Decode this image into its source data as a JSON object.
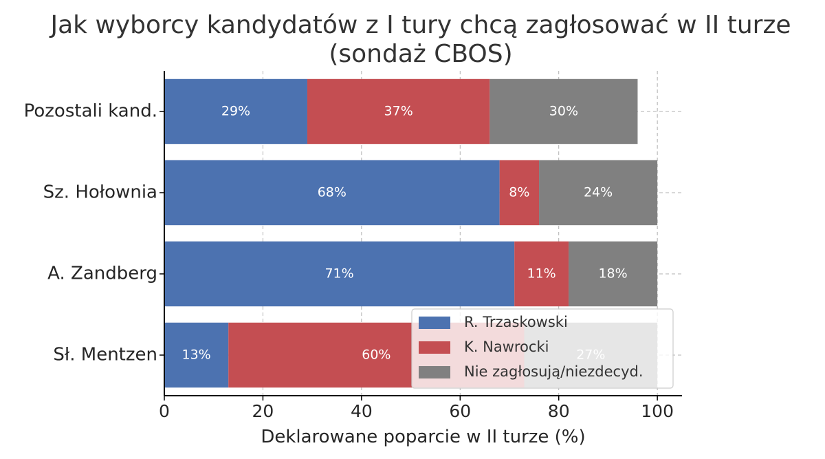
{
  "chart_data": {
    "type": "bar",
    "orientation": "horizontal",
    "stacked": true,
    "title": "Jak wyborcy kandydatów z I tury chcą zagłosować w II turze (sondaż CBOS)",
    "title_lines": [
      "Jak wyborcy kandydatów z I tury chcą zagłosować w II turze",
      "(sondaż CBOS)"
    ],
    "xlabel": "Deklarowane poparcie w II turze (%)",
    "ylabel": "",
    "xlim": [
      0,
      105
    ],
    "xticks": [
      0,
      20,
      40,
      60,
      80,
      100
    ],
    "grid": true,
    "legend_position": "lower-right",
    "categories": [
      "Sł. Mentzen",
      "A. Zandberg",
      "Sz. Hołownia",
      "Pozostali kand."
    ],
    "series": [
      {
        "name": "R. Trzaskowski",
        "color": "#4c72b0",
        "values": [
          13,
          71,
          68,
          29
        ]
      },
      {
        "name": "K. Nawrocki",
        "color": "#c44e52",
        "values": [
          60,
          11,
          8,
          37
        ]
      },
      {
        "name": "Nie zagłosują/niezdecyd.",
        "color": "#808080",
        "values": [
          27,
          18,
          24,
          30
        ]
      }
    ]
  }
}
